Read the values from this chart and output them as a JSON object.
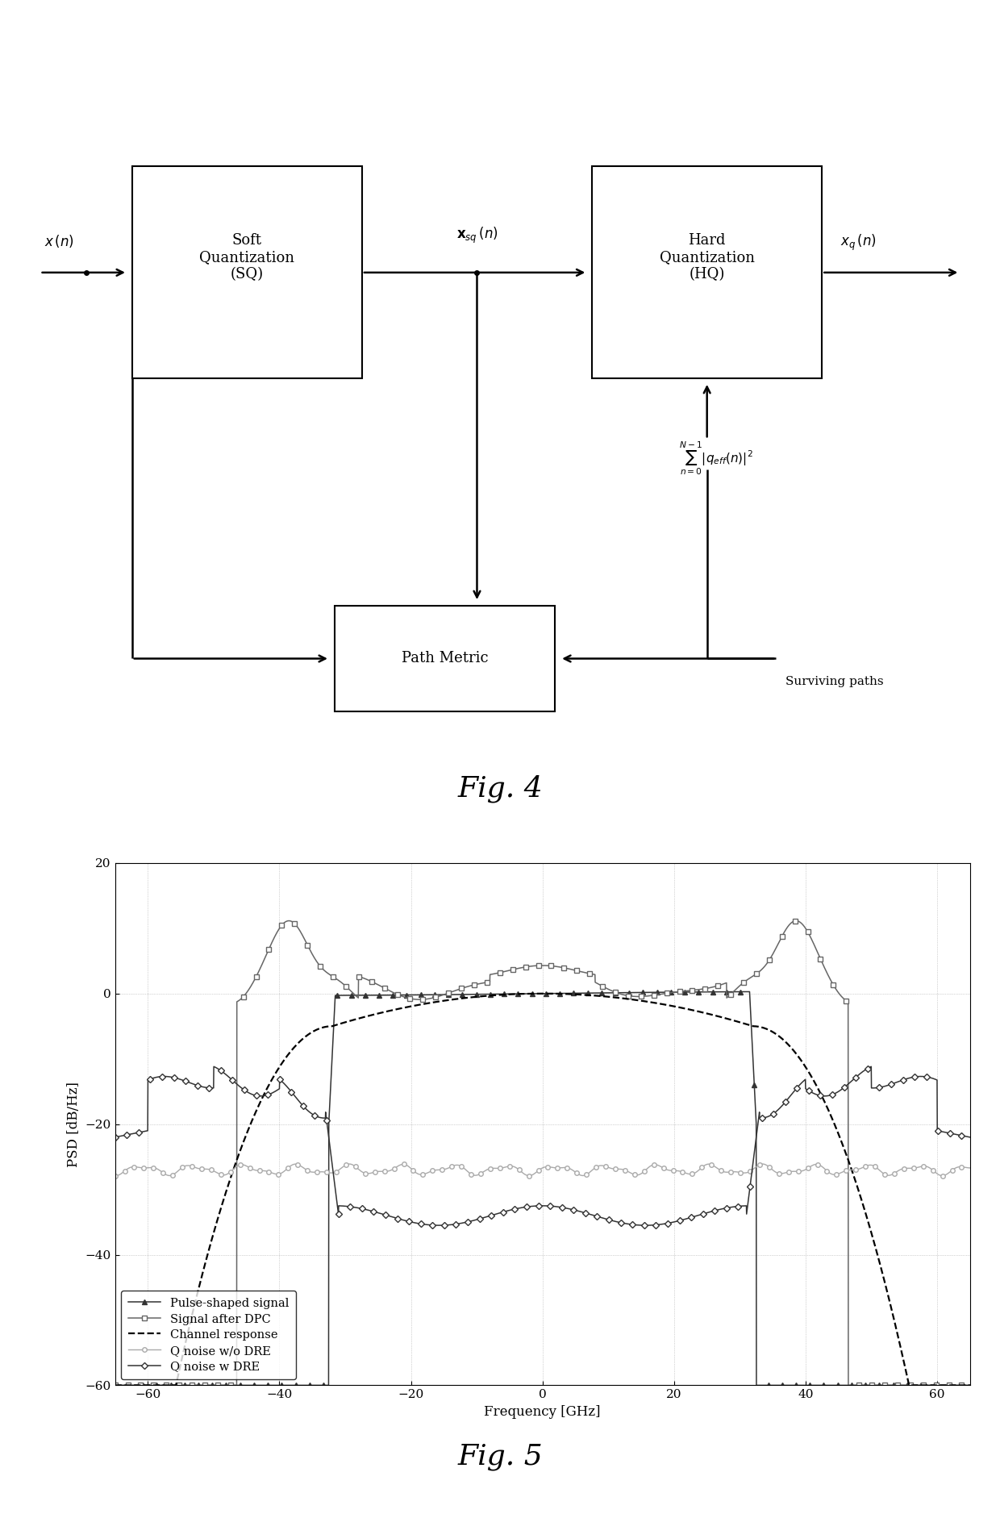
{
  "fig4_title": "Fig. 4",
  "fig5_title": "Fig. 5",
  "plot_xlabel": "Frequency [GHz]",
  "plot_ylabel": "PSD [dB/Hz]",
  "xlim": [
    -65,
    65
  ],
  "ylim": [
    -60,
    20
  ],
  "xticks": [
    -60,
    -40,
    -20,
    0,
    20,
    40,
    60
  ],
  "yticks": [
    -60,
    -40,
    -20,
    0,
    20
  ],
  "legend_entries": [
    "Pulse-shaped signal",
    "Signal after DPC",
    "Channel response",
    "Q noise w/o DRE",
    "Q noise w DRE"
  ],
  "background_color": "#ffffff"
}
